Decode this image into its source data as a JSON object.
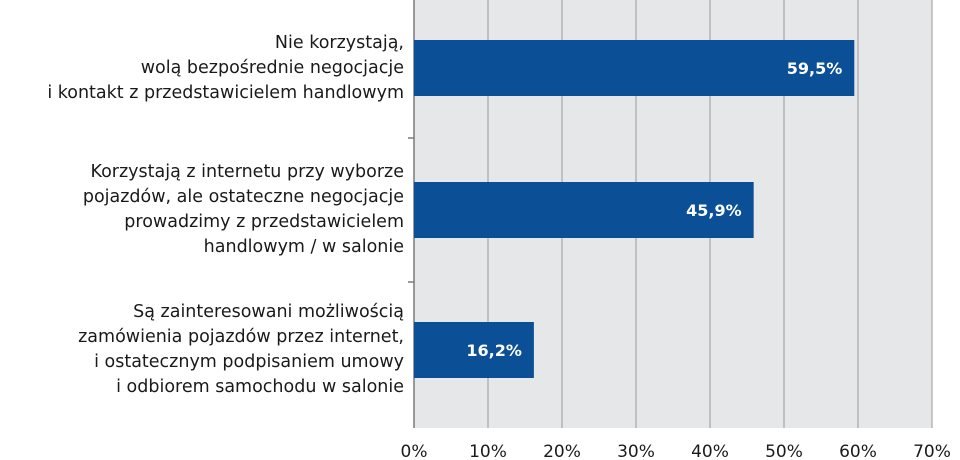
{
  "chart_data": {
    "type": "bar",
    "orientation": "horizontal",
    "categories": [
      [
        "Nie korzystają,",
        "wolą bezpośrednie negocjacje",
        "i kontakt z przedstawicielem handlowym"
      ],
      [
        "Korzystają z internetu przy wyborze",
        "pojazdów, ale ostateczne negocjacje",
        "prowadzimy z przedstawicielem",
        "handlowym / w salonie"
      ],
      [
        "Są zainteresowani możliwością",
        "zamówienia pojazdów przez internet,",
        "i ostatecznym podpisaniem umowy",
        "i odbiorem samochodu w salonie"
      ]
    ],
    "values": [
      59.5,
      45.9,
      16.2
    ],
    "data_labels": [
      "59,5%",
      "45,9%",
      "16,2%"
    ],
    "xlim": [
      0,
      70
    ],
    "x_ticks": [
      "0%",
      "10%",
      "20%",
      "30%",
      "40%",
      "50%",
      "60%",
      "70%"
    ],
    "grid": true,
    "colors": {
      "bar": "#0b4f96",
      "plot_bg": "#e6e7e9",
      "grid": "#9a9a9a",
      "label": "#ffffff"
    }
  }
}
